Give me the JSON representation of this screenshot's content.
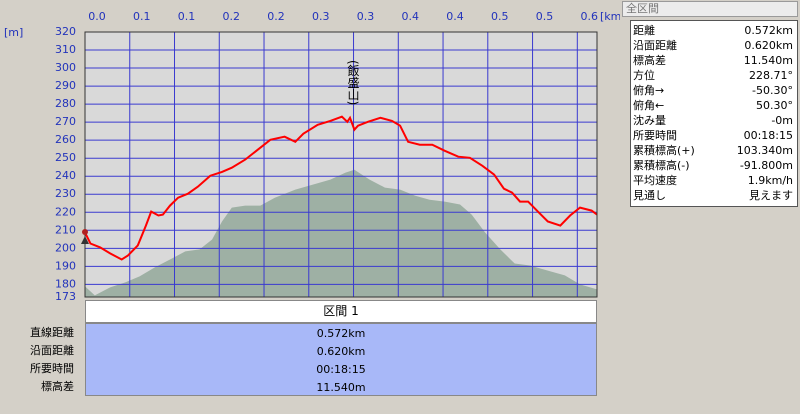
{
  "chart_data": {
    "type": "line",
    "y_unit": "[m]",
    "x_unit": "[km]",
    "annotation": "(飯盛山)",
    "xlim": [
      0,
      0.572
    ],
    "ylim": [
      173,
      320
    ],
    "grid": true,
    "xticks": [
      {
        "value": 0,
        "label": "0.0"
      },
      {
        "value": 0.05,
        "label": "0.1"
      },
      {
        "value": 0.1,
        "label": "0.1"
      },
      {
        "value": 0.15,
        "label": "0.2"
      },
      {
        "value": 0.2,
        "label": "0.2"
      },
      {
        "value": 0.25,
        "label": "0.3"
      },
      {
        "value": 0.3,
        "label": "0.3"
      },
      {
        "value": 0.35,
        "label": "0.4"
      },
      {
        "value": 0.4,
        "label": "0.4"
      },
      {
        "value": 0.45,
        "label": "0.5"
      },
      {
        "value": 0.5,
        "label": "0.5"
      },
      {
        "value": 0.55,
        "label": "0.6"
      }
    ],
    "yticks": [
      173,
      180,
      190,
      200,
      210,
      220,
      230,
      240,
      250,
      260,
      270,
      280,
      290,
      300,
      310,
      320
    ],
    "series": [
      {
        "kind": "area",
        "color": "#9eb0a4",
        "x": [
          0,
          0.011,
          0.028,
          0.045,
          0.061,
          0.078,
          0.095,
          0.112,
          0.128,
          0.142,
          0.153,
          0.164,
          0.179,
          0.196,
          0.212,
          0.235,
          0.254,
          0.274,
          0.291,
          0.301,
          0.318,
          0.335,
          0.352,
          0.369,
          0.385,
          0.402,
          0.419,
          0.432,
          0.447,
          0.464,
          0.48,
          0.497,
          0.52,
          0.536,
          0.553,
          0.572
        ],
        "values": [
          178.9,
          173.9,
          178.3,
          181.1,
          184.4,
          189.4,
          193.8,
          198.3,
          199.4,
          204.9,
          214.9,
          222.6,
          223.7,
          223.7,
          228.1,
          232.6,
          235.3,
          238.1,
          242,
          243.6,
          238.1,
          233.7,
          232.6,
          229.2,
          227,
          225.9,
          224.3,
          218.7,
          208.8,
          199.4,
          191.6,
          190.5,
          187.2,
          185,
          180,
          177.2
        ]
      },
      {
        "kind": "line",
        "color": "#ff0000",
        "x": [
          0,
          0.006,
          0.017,
          0.028,
          0.041,
          0.048,
          0.059,
          0.068,
          0.074,
          0.082,
          0.087,
          0.095,
          0.104,
          0.115,
          0.126,
          0.14,
          0.153,
          0.164,
          0.179,
          0.193,
          0.207,
          0.223,
          0.235,
          0.244,
          0.26,
          0.274,
          0.287,
          0.293,
          0.296,
          0.301,
          0.305,
          0.316,
          0.33,
          0.343,
          0.352,
          0.361,
          0.374,
          0.388,
          0.402,
          0.417,
          0.43,
          0.444,
          0.457,
          0.468,
          0.477,
          0.486,
          0.495,
          0.506,
          0.517,
          0.531,
          0.542,
          0.553,
          0.566,
          0.572
        ],
        "values": [
          208.8,
          202.7,
          200.5,
          197.2,
          193.8,
          196,
          201.6,
          212.6,
          220.4,
          218.2,
          218.7,
          223.7,
          228.1,
          230.3,
          234.2,
          240.3,
          242.4,
          244.7,
          249.2,
          254.7,
          260.2,
          261.9,
          259.1,
          263.6,
          268.5,
          270.7,
          273,
          270.2,
          272.4,
          265.8,
          268,
          270.2,
          272.4,
          270.7,
          268,
          259.1,
          257.5,
          257.5,
          254.1,
          250.8,
          250.2,
          245.8,
          240.9,
          233.1,
          230.9,
          225.9,
          225.9,
          220.4,
          214.9,
          212.6,
          218.2,
          222.6,
          220.9,
          218.7
        ]
      }
    ]
  },
  "summary": {
    "title": "全区間",
    "rows": [
      [
        "距離",
        "0.572km"
      ],
      [
        "沿面距離",
        "0.620km"
      ],
      [
        "標高差",
        "11.540m"
      ],
      [
        "方位",
        "228.71°"
      ],
      [
        "俯角→",
        "-50.30°"
      ],
      [
        "俯角←",
        "50.30°"
      ],
      [
        "沈み量",
        "-0m"
      ],
      [
        "所要時間",
        "00:18:15"
      ],
      [
        "累積標高(+)",
        "103.340m"
      ],
      [
        "累積標高(-)",
        "-91.800m"
      ],
      [
        "平均速度",
        "1.9km/h"
      ],
      [
        "見通し",
        "見えます"
      ]
    ]
  },
  "section": {
    "title": "区間 1",
    "rows": [
      [
        "直線距離",
        "0.572km"
      ],
      [
        "沿面距離",
        "0.620km"
      ],
      [
        "所要時間",
        "00:18:15"
      ],
      [
        "標高差",
        "11.540m"
      ]
    ]
  }
}
